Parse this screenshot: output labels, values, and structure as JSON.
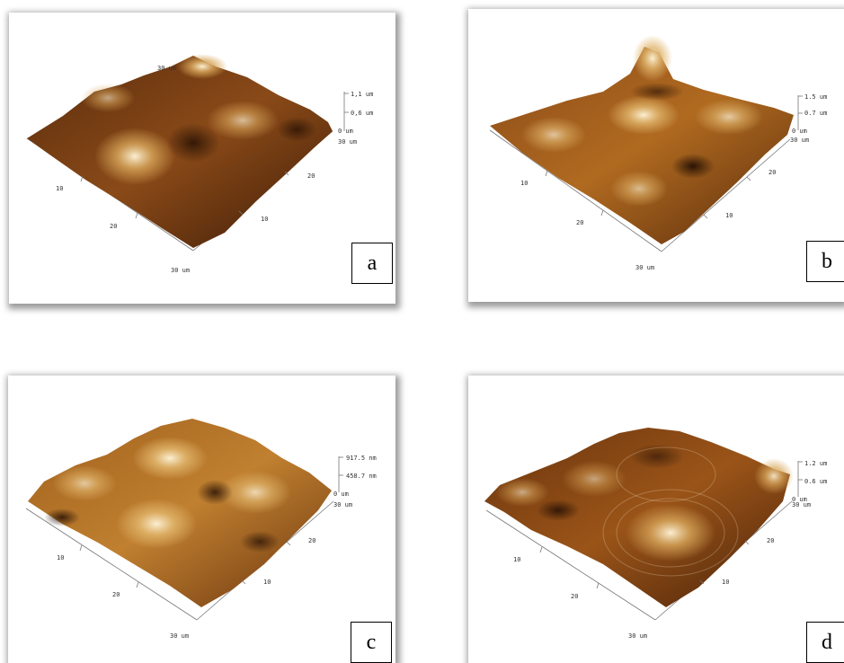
{
  "panels": [
    {
      "letter": "a",
      "x_ticks": [
        "10",
        "20",
        "30 um"
      ],
      "y_ticks": [
        "10",
        "20",
        "30 um"
      ],
      "z_ticks": [
        "1,1 um",
        "0,6 um",
        "0 um"
      ],
      "back_label": "30 um"
    },
    {
      "letter": "b",
      "x_ticks": [
        "10",
        "20",
        "30 um"
      ],
      "y_ticks": [
        "10",
        "20",
        "30 um"
      ],
      "z_ticks": [
        "1.5 um",
        "0.7 um",
        "0 um"
      ],
      "back_label": ""
    },
    {
      "letter": "c",
      "x_ticks": [
        "10",
        "20",
        "30 um"
      ],
      "y_ticks": [
        "10",
        "20",
        "30 um"
      ],
      "z_ticks": [
        "917.5 nm",
        "458.7 nm",
        "0 um"
      ],
      "back_label": ""
    },
    {
      "letter": "d",
      "x_ticks": [
        "10",
        "20",
        "30 um"
      ],
      "y_ticks": [
        "10",
        "20",
        "30 um"
      ],
      "z_ticks": [
        "1.2 um",
        "0.6 um",
        "0 um"
      ],
      "back_label": ""
    }
  ],
  "surface_colors": [
    "#3a1a06",
    "#7a3e10",
    "#b5721f",
    "#e0b46a",
    "#fbefd2"
  ]
}
